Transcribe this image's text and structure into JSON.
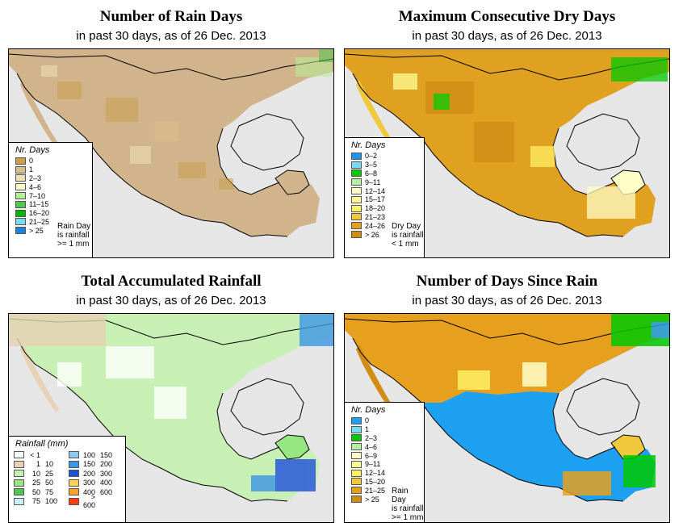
{
  "panels": [
    {
      "title": "Number of Rain Days",
      "subtitle": "in past 30 days, as of  26 Dec. 2013",
      "dominant_color": "#d2b48c",
      "legend": {
        "title": "Nr. Days",
        "items": [
          {
            "label": "0",
            "color": "#c8a050"
          },
          {
            "label": "1",
            "color": "#dcbe8c"
          },
          {
            "label": "2–3",
            "color": "#f0e0b4"
          },
          {
            "label": "4–6",
            "color": "#ffffc8"
          },
          {
            "label": "7–10",
            "color": "#b4f096"
          },
          {
            "label": "11–15",
            "color": "#50c850"
          },
          {
            "label": "16–20",
            "color": "#00b400"
          },
          {
            "label": "21–25",
            "color": "#78dcf0"
          },
          {
            "label": "> 25",
            "color": "#1e82dc"
          }
        ],
        "note": [
          "Rain Day",
          "is rainfall",
          ">= 1 mm"
        ]
      }
    },
    {
      "title": "Maximum Consecutive Dry Days",
      "subtitle": "in past 30 days, as of  26 Dec. 2013",
      "dominant_color": "#e0a020",
      "legend": {
        "title": "Nr. Days",
        "items": [
          {
            "label": "0–2",
            "color": "#1e96f0"
          },
          {
            "label": "3–5",
            "color": "#78dcf0"
          },
          {
            "label": "6–8",
            "color": "#00c800"
          },
          {
            "label": "9–11",
            "color": "#b4f0a0"
          },
          {
            "label": "12–14",
            "color": "#ffffc8"
          },
          {
            "label": "15–17",
            "color": "#ffff96"
          },
          {
            "label": "18–20",
            "color": "#fff064"
          },
          {
            "label": "21–23",
            "color": "#f0c83c"
          },
          {
            "label": "24–26",
            "color": "#e6a01e"
          },
          {
            "label": "> 26",
            "color": "#d28c14"
          }
        ],
        "note": [
          "Dry Day",
          "is rainfall",
          "< 1 mm"
        ]
      }
    },
    {
      "title": "Total Accumulated Rainfall",
      "subtitle": "in past 30 days, as of  26 Dec. 2013",
      "dominant_color": "#a0e08c",
      "legend": {
        "title": "Rainfall (mm)",
        "items": [
          {
            "lo": "< 1",
            "hi": "",
            "color": "#ffffff"
          },
          {
            "lo": "1",
            "hi": "10",
            "color": "#e6d2b4"
          },
          {
            "lo": "10",
            "hi": "25",
            "color": "#c8f0b4"
          },
          {
            "lo": "25",
            "hi": "50",
            "color": "#96e682"
          },
          {
            "lo": "50",
            "hi": "75",
            "color": "#50c850"
          },
          {
            "lo": "75",
            "hi": "100",
            "color": "#c8f0ff"
          },
          {
            "lo": "100",
            "hi": "150",
            "color": "#8cc8f0"
          },
          {
            "lo": "150",
            "hi": "200",
            "color": "#3c96e6"
          },
          {
            "lo": "200",
            "hi": "300",
            "color": "#1e50dc"
          },
          {
            "lo": "300",
            "hi": "400",
            "color": "#ffd250"
          },
          {
            "lo": "400",
            "hi": "600",
            "color": "#ffa028"
          },
          {
            "lo": "> 600",
            "hi": "",
            "color": "#ff3c14"
          }
        ]
      }
    },
    {
      "title": "Number of Days Since Rain",
      "subtitle": "in past 30 days, as of  26 Dec. 2013",
      "dominant_color": "#1ea0f0",
      "legend": {
        "title": "Nr. Days",
        "items": [
          {
            "label": "0",
            "color": "#1ea0f0"
          },
          {
            "label": "1",
            "color": "#78dcf0"
          },
          {
            "label": "2–3",
            "color": "#00c800"
          },
          {
            "label": "4–6",
            "color": "#b4f0a0"
          },
          {
            "label": "6–9",
            "color": "#ffffc8"
          },
          {
            "label": "9–11",
            "color": "#ffff96"
          },
          {
            "label": "12–14",
            "color": "#fff064"
          },
          {
            "label": "15–20",
            "color": "#f0c83c"
          },
          {
            "label": "21–25",
            "color": "#e6a01e"
          },
          {
            "label": "> 25",
            "color": "#d28c14"
          }
        ],
        "note": [
          "Rain Day",
          "is rainfall",
          ">= 1 mm"
        ]
      }
    }
  ]
}
